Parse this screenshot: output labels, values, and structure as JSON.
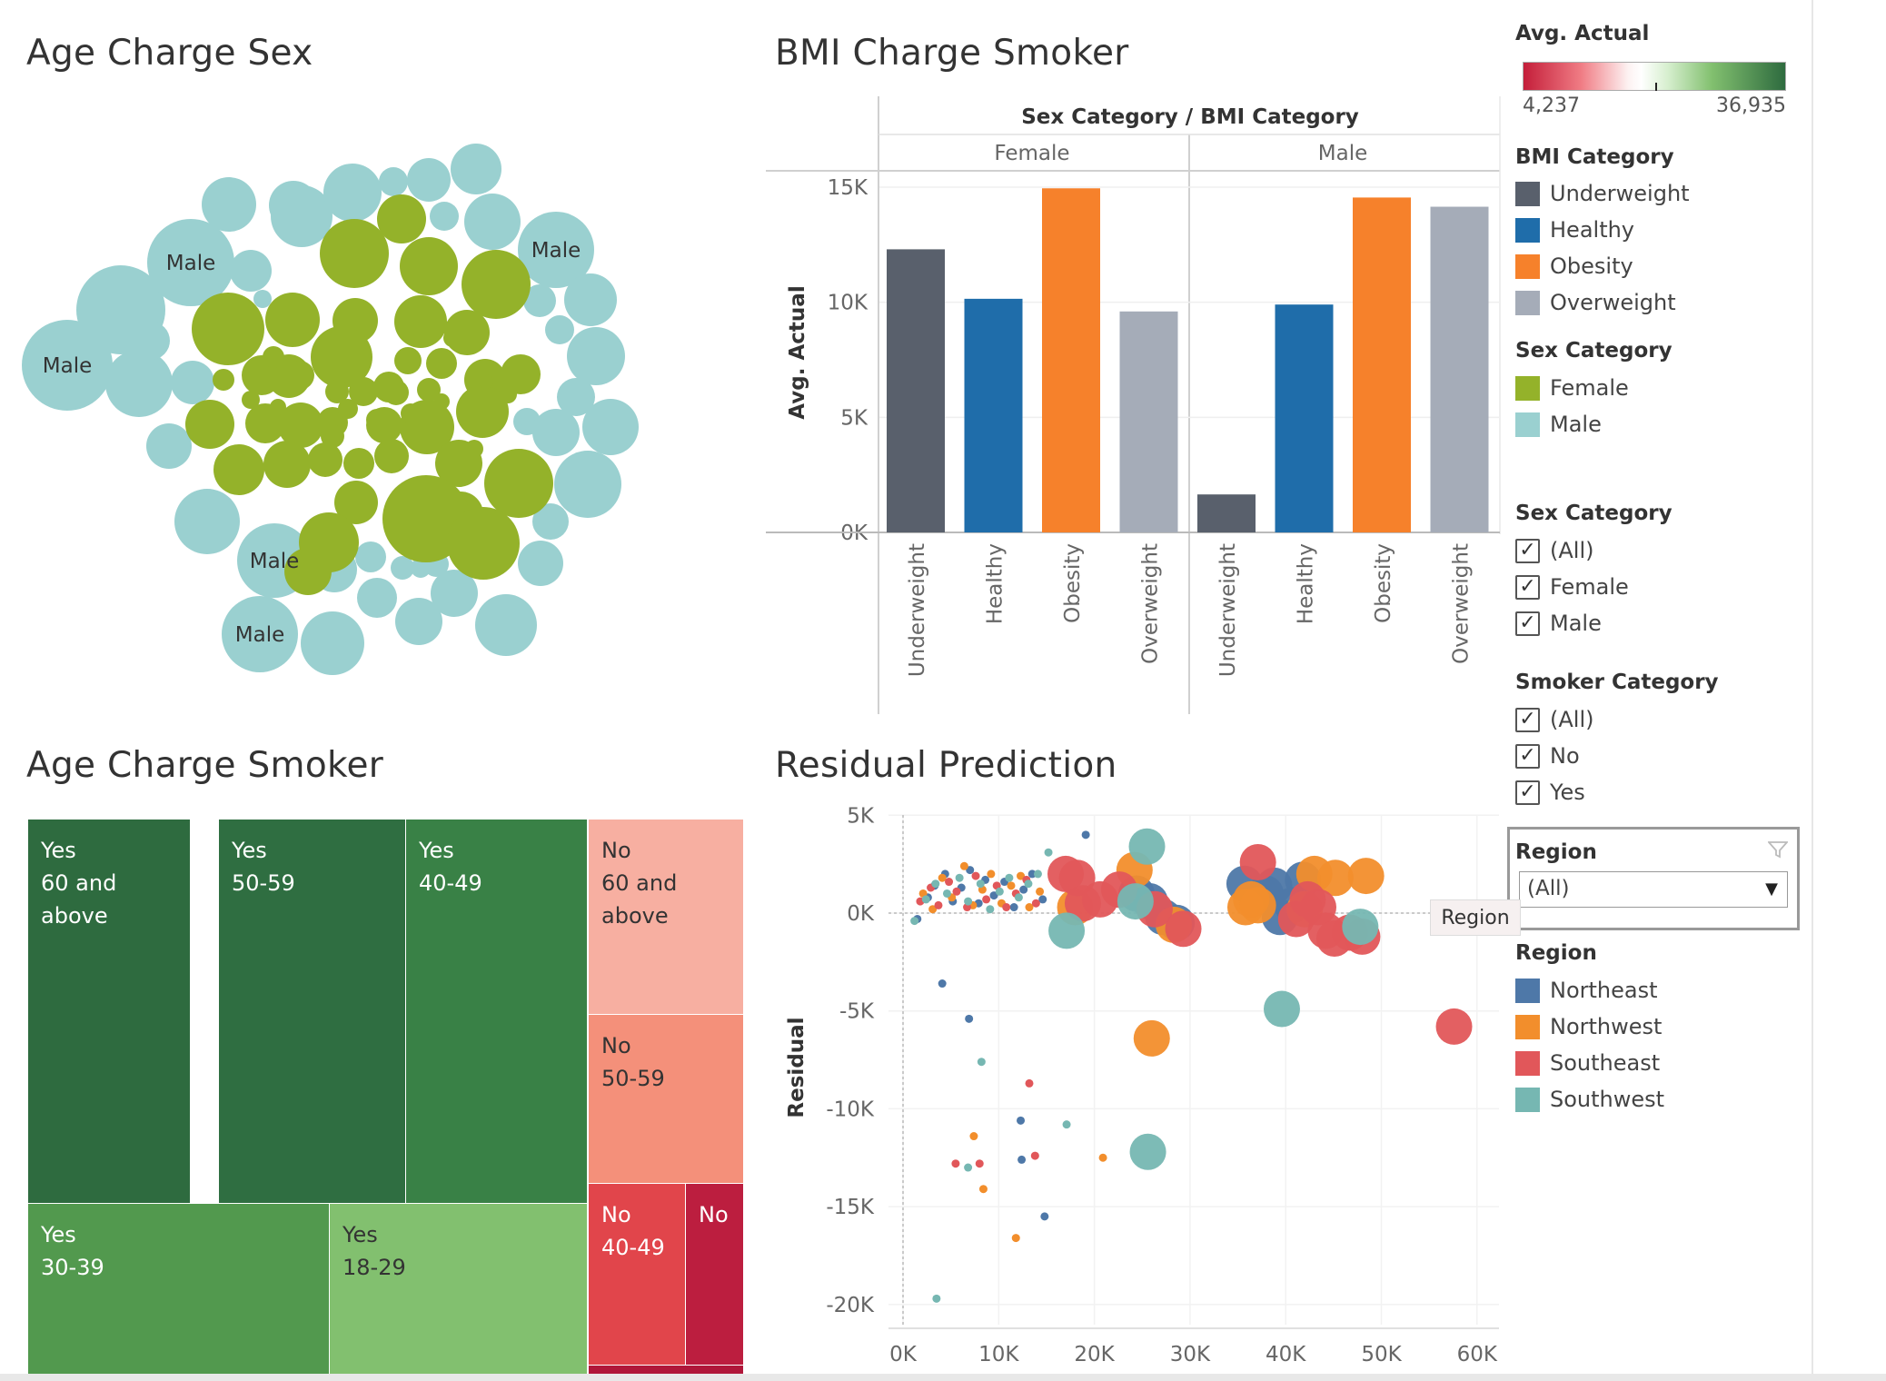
{
  "sheets": {
    "age_charge_sex": "Age Charge Sex",
    "bmi_charge_smoker": "BMI Charge Smoker",
    "age_charge_smoker": "Age Charge Smoker",
    "residual_prediction": "Residual Prediction"
  },
  "colors": {
    "female": "#94B22A",
    "male": "#9AD0D0",
    "underweight": "#59606C",
    "healthy": "#1F6DAA",
    "obesity": "#F6812B",
    "overweight": "#A5ACB8",
    "northeast": "#4E78A8",
    "northwest": "#F28E2C",
    "southeast": "#E1575A",
    "southwest": "#76B7B2"
  },
  "bubble_chart": {
    "labels": [
      "Male",
      "Male",
      "Male",
      "Male",
      "Male"
    ]
  },
  "bar_chart": {
    "header": "Sex Category / BMI Category",
    "ylabel": "Avg. Actual",
    "y_ticks": [
      "15K",
      "10K",
      "5K",
      "0K"
    ],
    "ylim": [
      0,
      15000
    ]
  },
  "scatter_chart": {
    "ylabel": "Residual",
    "x_ticks": [
      "0K",
      "10K",
      "20K",
      "30K",
      "40K",
      "50K",
      "60K"
    ],
    "y_ticks": [
      "5K",
      "0K",
      "-5K",
      "-10K",
      "-15K",
      "-20K"
    ],
    "xlim": [
      0,
      62000
    ],
    "ylim": [
      -21000,
      5000
    ]
  },
  "chart_data": [
    {
      "type": "scatter",
      "title": "Age Charge Sex",
      "note": "packed bubble chart, bubble color by sex category",
      "series": [
        {
          "name": "Female",
          "count": 57
        },
        {
          "name": "Male",
          "count": 45
        }
      ]
    },
    {
      "type": "bar",
      "title": "BMI Charge Smoker",
      "ylabel": "Avg. Actual",
      "ylim": [
        0,
        15000
      ],
      "groups": [
        {
          "name": "Female",
          "categories": [
            "Underweight",
            "Healthy",
            "Obesity",
            "Overweight"
          ],
          "values": [
            12300,
            10150,
            14950,
            9600
          ]
        },
        {
          "name": "Male",
          "categories": [
            "Underweight",
            "Healthy",
            "Obesity",
            "Overweight"
          ],
          "values": [
            1650,
            9900,
            14550,
            14150
          ]
        }
      ]
    },
    {
      "type": "heatmap",
      "title": "Age Charge Smoker",
      "note": "treemap, color by Avg. Actual",
      "cells": [
        {
          "smoker": "Yes",
          "age": "60 and above",
          "color": "#2E6B3F"
        },
        {
          "smoker": "Yes",
          "age": "50-59",
          "color": "#2F6E41"
        },
        {
          "smoker": "Yes",
          "age": "40-49",
          "color": "#398146"
        },
        {
          "smoker": "Yes",
          "age": "30-39",
          "color": "#52994E"
        },
        {
          "smoker": "Yes",
          "age": "18-29",
          "color": "#82C06F"
        },
        {
          "smoker": "No",
          "age": "60 and above",
          "color": "#F7AFA1"
        },
        {
          "smoker": "No",
          "age": "50-59",
          "color": "#F4907A"
        },
        {
          "smoker": "No",
          "age": "40-49",
          "color": "#E1454B"
        },
        {
          "smoker": "No",
          "age": "",
          "color": "#BC1E3F"
        }
      ]
    },
    {
      "type": "scatter",
      "title": "Residual Prediction",
      "ylabel": "Residual",
      "xlim": [
        0,
        62000
      ],
      "ylim": [
        -21000,
        5000
      ],
      "series": [
        {
          "name": "Northeast",
          "points": [
            [
              1500,
              -300
            ],
            [
              2600,
              800
            ],
            [
              3300,
              1400
            ],
            [
              4400,
              2000
            ],
            [
              5200,
              600
            ],
            [
              6100,
              1300
            ],
            [
              7000,
              2200
            ],
            [
              7900,
              500
            ],
            [
              8600,
              1700
            ],
            [
              9500,
              900
            ],
            [
              10600,
              1600
            ],
            [
              11600,
              300
            ],
            [
              12600,
              1200
            ],
            [
              13500,
              2000
            ],
            [
              14600,
              700
            ],
            [
              19100,
              4000
            ],
            [
              4100,
              -3600
            ],
            [
              6900,
              -5400
            ],
            [
              12300,
              -10600
            ],
            [
              12400,
              -12600
            ],
            [
              14800,
              -15500
            ],
            [
              24400,
              1000
            ],
            [
              25800,
              600
            ],
            [
              27200,
              -200
            ],
            [
              28600,
              -500
            ],
            [
              35700,
              1500
            ],
            [
              37900,
              1000
            ],
            [
              38800,
              1400
            ],
            [
              39400,
              -200
            ],
            [
              40700,
              400
            ],
            [
              41800,
              1700
            ]
          ],
          "sizes": [
            9,
            9,
            9,
            9,
            9,
            9,
            9,
            9,
            9,
            9,
            9,
            9,
            9,
            9,
            9,
            9,
            9,
            9,
            9,
            9,
            9,
            34,
            34,
            34,
            34,
            34,
            34,
            34,
            34,
            34,
            34
          ]
        },
        {
          "name": "Northwest",
          "points": [
            [
              2100,
              1000
            ],
            [
              3100,
              200
            ],
            [
              4100,
              1800
            ],
            [
              5100,
              800
            ],
            [
              6400,
              2400
            ],
            [
              7300,
              400
            ],
            [
              8300,
              1200
            ],
            [
              9200,
              2000
            ],
            [
              10300,
              500
            ],
            [
              11300,
              1400
            ],
            [
              12300,
              1900
            ],
            [
              13200,
              300
            ],
            [
              14300,
              1100
            ],
            [
              7400,
              -11400
            ],
            [
              8400,
              -14100
            ],
            [
              11800,
              -16600
            ],
            [
              20900,
              -12500
            ],
            [
              18000,
              300
            ],
            [
              24200,
              2200
            ],
            [
              26000,
              -6400
            ],
            [
              28300,
              -600
            ],
            [
              35800,
              300
            ],
            [
              36400,
              700
            ],
            [
              37100,
              400
            ],
            [
              42000,
              200
            ],
            [
              43000,
              2000
            ],
            [
              45200,
              1800
            ],
            [
              48400,
              1900
            ]
          ],
          "sizes": [
            9,
            9,
            9,
            9,
            9,
            9,
            9,
            9,
            9,
            9,
            9,
            9,
            9,
            9,
            9,
            9,
            9,
            34,
            34,
            34,
            34,
            34,
            34,
            34,
            34,
            34,
            34,
            34
          ]
        },
        {
          "name": "Southeast",
          "points": [
            [
              1800,
              600
            ],
            [
              2900,
              1300
            ],
            [
              3700,
              400
            ],
            [
              4800,
              1600
            ],
            [
              5600,
              1100
            ],
            [
              6700,
              300
            ],
            [
              7600,
              1900
            ],
            [
              8700,
              700
            ],
            [
              9800,
              1400
            ],
            [
              10800,
              300
            ],
            [
              11800,
              1000
            ],
            [
              12900,
              1700
            ],
            [
              13900,
              500
            ],
            [
              5500,
              -12800
            ],
            [
              8000,
              -12800
            ],
            [
              13200,
              -8700
            ],
            [
              13800,
              -12400
            ],
            [
              17000,
              2000
            ],
            [
              18200,
              1800
            ],
            [
              18800,
              500
            ],
            [
              20600,
              700
            ],
            [
              22600,
              1200
            ],
            [
              26300,
              200
            ],
            [
              29300,
              -800
            ],
            [
              37100,
              2600
            ],
            [
              41100,
              -300
            ],
            [
              42300,
              700
            ],
            [
              43400,
              300
            ],
            [
              44200,
              -900
            ],
            [
              45100,
              -1300
            ],
            [
              46700,
              -1000
            ],
            [
              48000,
              -1200
            ],
            [
              57600,
              -5800
            ]
          ],
          "sizes": [
            9,
            9,
            9,
            9,
            9,
            9,
            9,
            9,
            9,
            9,
            9,
            9,
            9,
            9,
            9,
            9,
            9,
            34,
            34,
            34,
            34,
            34,
            34,
            34,
            34,
            34,
            34,
            34,
            34,
            34,
            34,
            34,
            34
          ]
        },
        {
          "name": "Southwest",
          "points": [
            [
              1200,
              -400
            ],
            [
              2400,
              700
            ],
            [
              3400,
              1500
            ],
            [
              4600,
              1000
            ],
            [
              5900,
              1800
            ],
            [
              6800,
              600
            ],
            [
              8100,
              1500
            ],
            [
              9100,
              200
            ],
            [
              10100,
              1100
            ],
            [
              11100,
              1800
            ],
            [
              12100,
              800
            ],
            [
              13100,
              1500
            ],
            [
              14100,
              2000
            ],
            [
              15200,
              3100
            ],
            [
              8200,
              -7600
            ],
            [
              17100,
              -10800
            ],
            [
              6800,
              -13000
            ],
            [
              3500,
              -19700
            ],
            [
              17100,
              -900
            ],
            [
              24300,
              600
            ],
            [
              25500,
              3400
            ],
            [
              25600,
              -12200
            ],
            [
              39600,
              -4900
            ],
            [
              47800,
              -700
            ]
          ],
          "sizes": [
            9,
            9,
            9,
            9,
            9,
            9,
            9,
            9,
            9,
            9,
            9,
            9,
            9,
            9,
            9,
            9,
            9,
            9,
            34,
            34,
            34,
            34,
            34,
            34
          ]
        }
      ]
    }
  ],
  "legends": {
    "avg_actual": {
      "title": "Avg. Actual",
      "min_label": "4,237",
      "max_label": "36,935"
    },
    "bmi_category": {
      "title": "BMI Category",
      "items": [
        "Underweight",
        "Healthy",
        "Obesity",
        "Overweight"
      ]
    },
    "sex_category": {
      "title": "Sex Category",
      "items": [
        "Female",
        "Male"
      ]
    },
    "sex_filter": {
      "title": "Sex Category",
      "items": [
        "(All)",
        "Female",
        "Male"
      ]
    },
    "smoker_filter": {
      "title": "Smoker Category",
      "items": [
        "(All)",
        "No",
        "Yes"
      ]
    },
    "region_filter": {
      "title": "Region",
      "selected": "(All)"
    },
    "region_tooltip": "Region",
    "region": {
      "title": "Region",
      "items": [
        "Northeast",
        "Northwest",
        "Southeast",
        "Southwest"
      ]
    }
  }
}
